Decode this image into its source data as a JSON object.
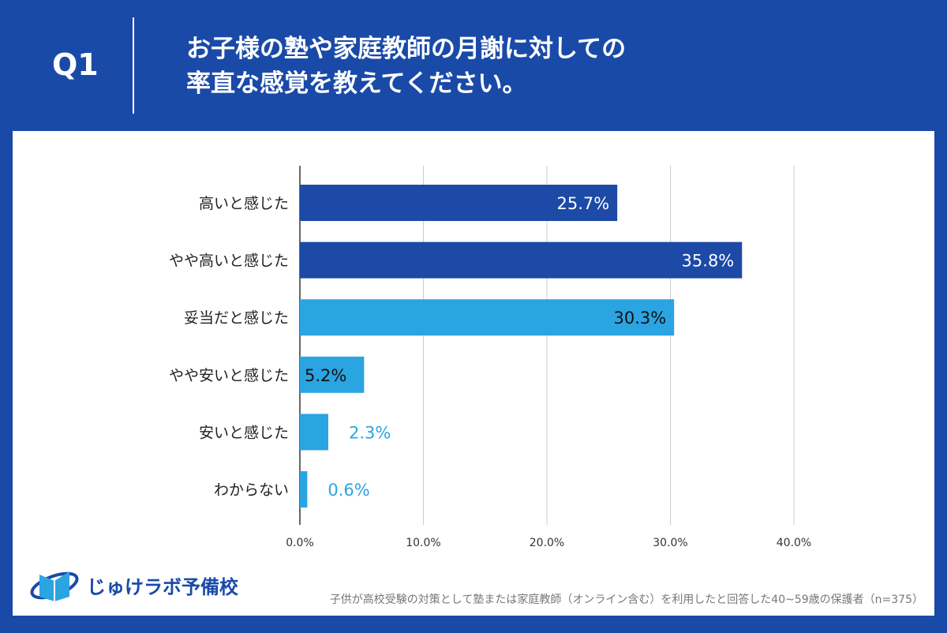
{
  "header": {
    "q_label": "Q1",
    "title_line1": "お子様の塾や家庭教師の月謝に対しての",
    "title_line2": "率直な感覚を教えてください。"
  },
  "footer": {
    "logo_text": "じゅけラボ予備校",
    "note": "子供が高校受験の対策として塾または家庭教師（オンライン含む）を利用したと回答した40~59歳の保護者（n=375）"
  },
  "colors": {
    "background": "#1a4aa8",
    "dark_bar": "#1c4aa6",
    "light_bar": "#2ba4e2"
  },
  "chart_data": {
    "type": "bar",
    "orientation": "horizontal",
    "categories": [
      "高いと感じた",
      "やや高いと感じた",
      "妥当だと感じた",
      "やや安いと感じた",
      "安いと感じた",
      "わからない"
    ],
    "values": [
      25.7,
      35.8,
      30.3,
      5.2,
      2.3,
      0.6
    ],
    "data_labels": [
      "25.7%",
      "35.8%",
      "30.3%",
      "5.2%",
      "2.3%",
      "0.6%"
    ],
    "bar_colors": [
      "#1c4aa6",
      "#1c4aa6",
      "#2ba4e2",
      "#2ba4e2",
      "#2ba4e2",
      "#2ba4e2"
    ],
    "xlim": [
      0,
      40
    ],
    "x_ticks": [
      "0.0%",
      "10.0%",
      "20.0%",
      "30.0%",
      "40.0%"
    ],
    "grid": true
  }
}
